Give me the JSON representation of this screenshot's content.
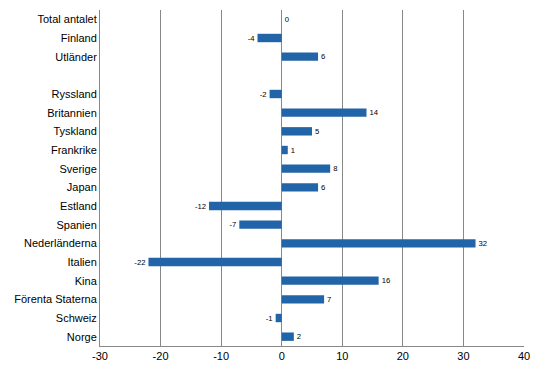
{
  "chart_data": {
    "type": "bar",
    "orientation": "horizontal",
    "categories": [
      "Total antalet",
      "Finland",
      "Utländer",
      null,
      "Ryssland",
      "Britannien",
      "Tyskland",
      "Frankrike",
      "Sverige",
      "Japan",
      "Estland",
      "Spanien",
      "Nederländerna",
      "Italien",
      "Kina",
      "Förenta Staterna",
      "Schweiz",
      "Norge"
    ],
    "values": [
      0,
      -4,
      6,
      null,
      -2,
      14,
      5,
      1,
      8,
      6,
      -12,
      -7,
      32,
      -22,
      16,
      7,
      -1,
      2
    ],
    "color": "#2264a8",
    "xlim": [
      -30,
      40
    ],
    "xticks": [
      -30,
      -20,
      -10,
      0,
      10,
      20,
      30,
      40
    ],
    "grid": true,
    "data_labels": true
  }
}
